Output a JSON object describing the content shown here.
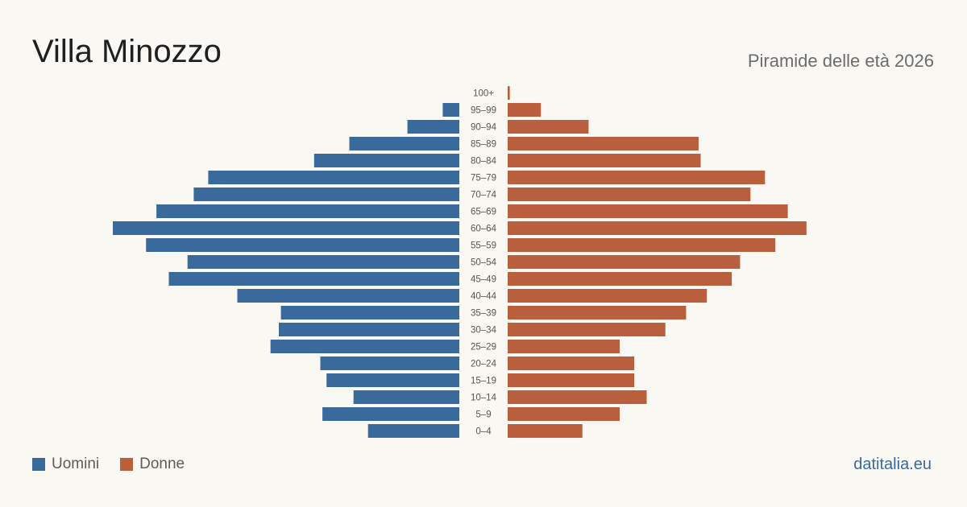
{
  "header": {
    "title": "Villa Minozzo",
    "subtitle": "Piramide delle età 2026"
  },
  "legend": {
    "men_label": "Uomini",
    "women_label": "Donne"
  },
  "brand": "datitalia.eu",
  "colors": {
    "men": "#3a6a9c",
    "women": "#b95f3d",
    "background": "#faf8f3",
    "label": "#555555"
  },
  "chart_data": {
    "type": "bar",
    "orientation": "horizontal",
    "layout": "population-pyramid",
    "categories": [
      "100+",
      "95-99",
      "90-94",
      "85-89",
      "80-84",
      "75-79",
      "70-74",
      "65-69",
      "60-64",
      "55-59",
      "50-54",
      "45-49",
      "40-44",
      "35-39",
      "30-34",
      "25-29",
      "20-24",
      "15-19",
      "10-14",
      "5-9",
      "0-4"
    ],
    "category_labels": [
      "100+",
      "95–99",
      "90–94",
      "85–89",
      "80–84",
      "75–79",
      "70–74",
      "65–69",
      "60–64",
      "55–59",
      "50–54",
      "45–49",
      "40–44",
      "35–39",
      "30–34",
      "25–29",
      "20–24",
      "15–19",
      "10–14",
      "5–9",
      "0–4"
    ],
    "series": [
      {
        "name": "Uomini",
        "side": "left",
        "values": [
          0,
          8,
          25,
          53,
          70,
          121,
          128,
          146,
          167,
          151,
          131,
          140,
          107,
          86,
          87,
          91,
          67,
          64,
          51,
          66,
          44
        ]
      },
      {
        "name": "Donne",
        "side": "right",
        "values": [
          1,
          16,
          39,
          92,
          93,
          124,
          117,
          135,
          144,
          129,
          112,
          108,
          96,
          86,
          76,
          54,
          61,
          61,
          67,
          54,
          36
        ]
      }
    ],
    "xlim": [
      0,
      167
    ],
    "grid": false,
    "legend_position": "bottom-left"
  }
}
